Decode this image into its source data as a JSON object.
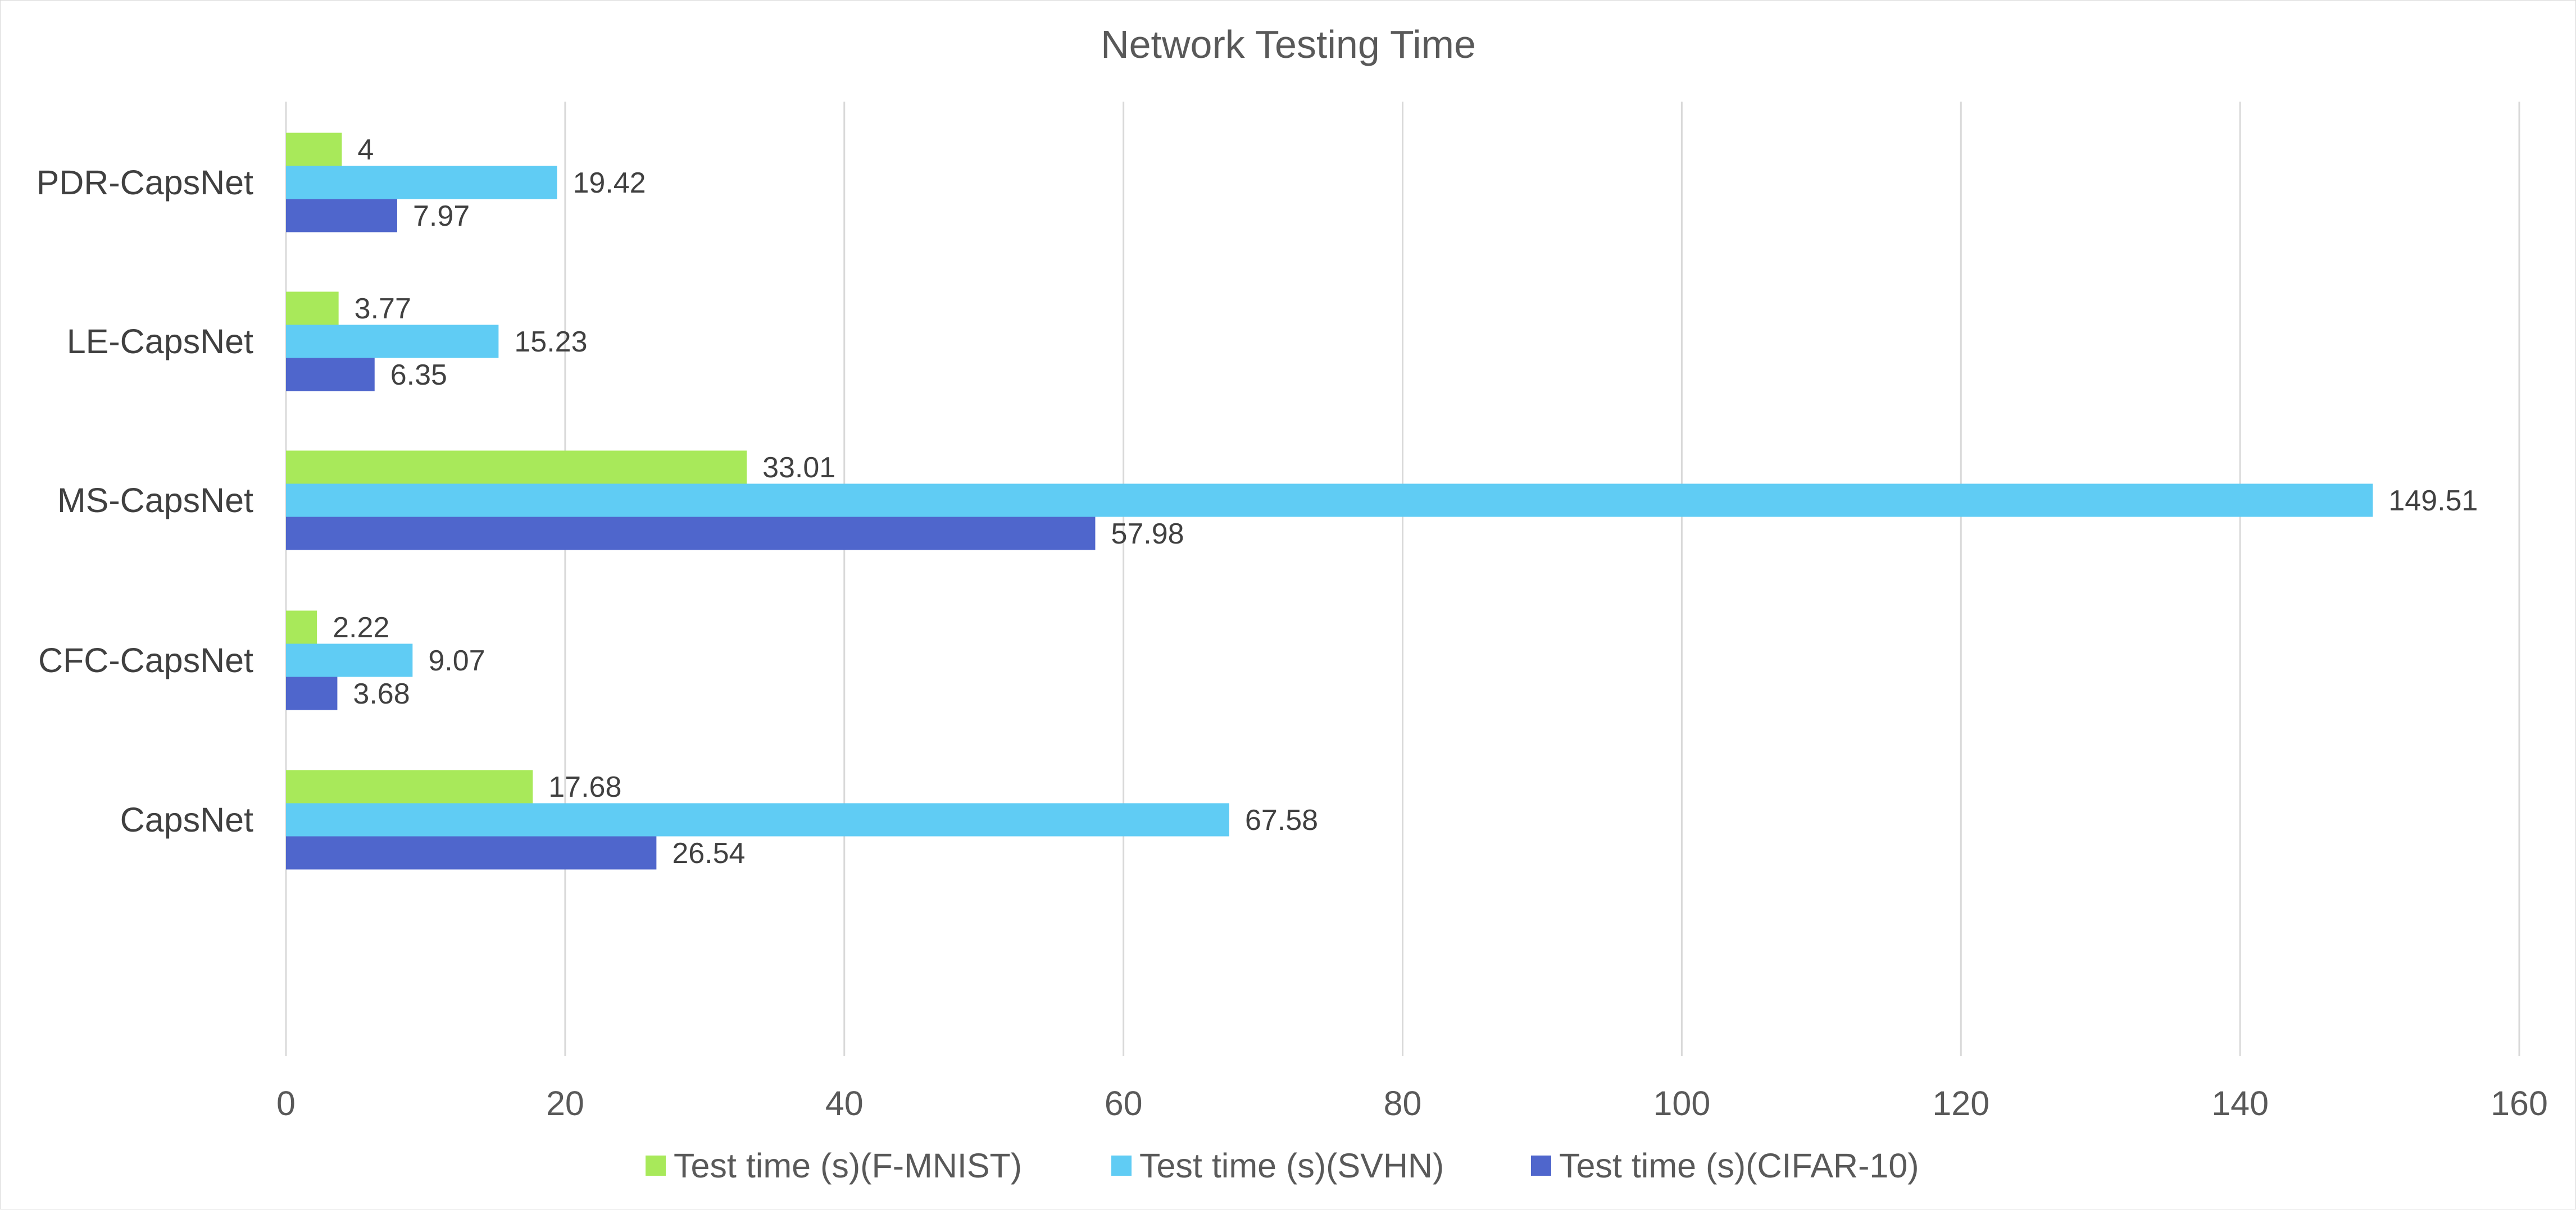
{
  "chart_data": {
    "type": "bar",
    "orientation": "horizontal",
    "title": "Network Testing Time",
    "categories": [
      "PDR-CapsNet",
      "LE-CapsNet",
      "MS-CapsNet",
      "CFC-CapsNet",
      "CapsNet"
    ],
    "series": [
      {
        "name": "Test time (s)(F-MNIST)",
        "color": "#a8e95a",
        "values": [
          4,
          3.77,
          33.01,
          2.22,
          17.68
        ]
      },
      {
        "name": "Test time (s)(SVHN)",
        "color": "#60ccf4",
        "values": [
          19.42,
          15.23,
          149.51,
          9.07,
          67.58
        ]
      },
      {
        "name": "Test time (s)(CIFAR-10)",
        "color": "#4f66cc",
        "values": [
          7.97,
          6.35,
          57.98,
          3.68,
          26.54
        ]
      }
    ],
    "data_labels": [
      [
        "4",
        "3.77",
        "33.01",
        "2.22",
        "17.68"
      ],
      [
        "19.42",
        "15.23",
        "149.51",
        "9.07",
        "67.58"
      ],
      [
        "7.97",
        "6.35",
        "57.98",
        "3.68",
        "26.54"
      ]
    ],
    "xlim": [
      0,
      160
    ],
    "xticks": [
      "0",
      "20",
      "40",
      "60",
      "80",
      "100",
      "120",
      "140",
      "160"
    ],
    "grid": true,
    "legend_position": "bottom"
  }
}
